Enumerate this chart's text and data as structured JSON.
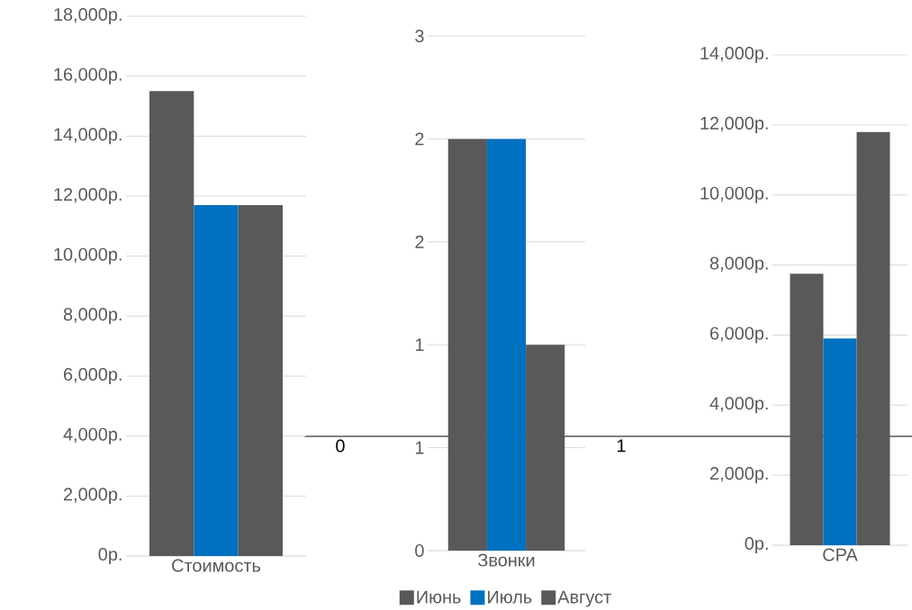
{
  "chart_data": [
    {
      "type": "bar",
      "categories": [
        "Стоимость"
      ],
      "series": [
        {
          "color": "#595959",
          "values": [
            15500
          ]
        },
        {
          "color": "#0070c0",
          "values": [
            11700
          ]
        },
        {
          "color": "#595959",
          "values": [
            11700
          ]
        }
      ],
      "ylim": [
        0,
        18000
      ],
      "yticks": [
        {
          "value": 0,
          "label": "0р."
        },
        {
          "value": 2000,
          "label": "2,000р."
        },
        {
          "value": 4000,
          "label": "4,000р."
        },
        {
          "value": 6000,
          "label": "6,000р."
        },
        {
          "value": 8000,
          "label": "8,000р."
        },
        {
          "value": 10000,
          "label": "10,000р."
        },
        {
          "value": 12000,
          "label": "12,000р."
        },
        {
          "value": 14000,
          "label": "14,000р."
        },
        {
          "value": 16000,
          "label": "16,000р."
        },
        {
          "value": 18000,
          "label": "18,000р."
        }
      ],
      "grid": "y"
    },
    {
      "type": "bar",
      "categories": [
        "Звонки"
      ],
      "series": [
        {
          "name": "Июнь",
          "color": "#595959",
          "values": [
            2
          ]
        },
        {
          "name": "Июль",
          "color": "#0070c0",
          "values": [
            2
          ]
        },
        {
          "name": "Август",
          "color": "#595959",
          "values": [
            1
          ]
        }
      ],
      "ylim": [
        0,
        2.5
      ],
      "yticks": [
        0,
        {
          "value": 0.5,
          "label": "1"
        },
        1,
        {
          "value": 1.5,
          "label": "2"
        },
        2,
        {
          "value": 2.5,
          "label": "3"
        }
      ],
      "grid": "y",
      "legend": "bottom"
    },
    {
      "type": "bar",
      "categories": [
        "CPA"
      ],
      "series": [
        {
          "color": "#595959",
          "values": [
            7750
          ]
        },
        {
          "color": "#0070c0",
          "values": [
            5900
          ]
        },
        {
          "color": "#595959",
          "values": [
            11800
          ]
        }
      ],
      "ylim": [
        0,
        14000
      ],
      "yticks": [
        {
          "value": 0,
          "label": "0р."
        },
        {
          "value": 2000,
          "label": "2,000р."
        },
        {
          "value": 4000,
          "label": "4,000р."
        },
        {
          "value": 6000,
          "label": "6,000р."
        },
        {
          "value": 8000,
          "label": "8,000р."
        },
        {
          "value": 10000,
          "label": "10,000р."
        },
        {
          "value": 12000,
          "label": "12,000р."
        },
        {
          "value": 14000,
          "label": "14,000р."
        }
      ],
      "grid": "y"
    },
    {
      "type": "other",
      "categories": [
        "0",
        "1"
      ]
    }
  ]
}
